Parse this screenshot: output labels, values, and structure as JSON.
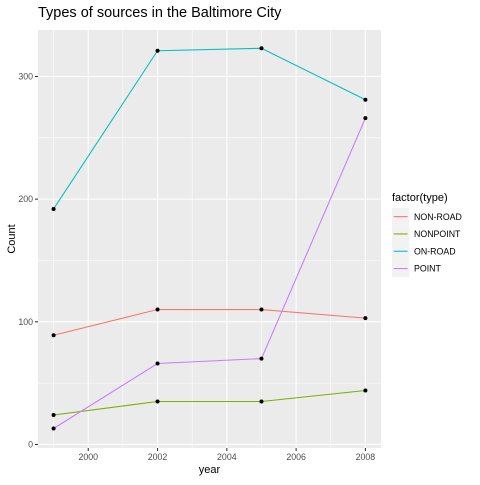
{
  "chart_data": {
    "type": "line",
    "title": "Types of sources in the Baltimore City",
    "xlabel": "year",
    "ylabel": "Count",
    "x": [
      1999,
      2002,
      2005,
      2008
    ],
    "xlim": [
      1998.55,
      2008.45
    ],
    "ylim": [
      -2.9,
      337.9
    ],
    "x_ticks": [
      2000,
      2002,
      2004,
      2006,
      2008
    ],
    "x_tick_labels": [
      "2000",
      "2002",
      "2004",
      "2006",
      "2008"
    ],
    "y_ticks": [
      0,
      100,
      200,
      300
    ],
    "y_tick_labels": [
      "0",
      "100",
      "200",
      "300"
    ],
    "grid": true,
    "legend_title": "factor(type)",
    "legend_position": "right",
    "series": [
      {
        "name": "NON-ROAD",
        "color": "#F8766D",
        "values": [
          89,
          110,
          110,
          103
        ]
      },
      {
        "name": "NONPOINT",
        "color": "#7CAE00",
        "values": [
          24,
          35,
          35,
          44
        ]
      },
      {
        "name": "ON-ROAD",
        "color": "#00BFC4",
        "values": [
          192,
          321,
          323,
          281
        ]
      },
      {
        "name": "POINT",
        "color": "#C77CFF",
        "values": [
          13,
          66,
          70,
          266
        ]
      }
    ]
  }
}
